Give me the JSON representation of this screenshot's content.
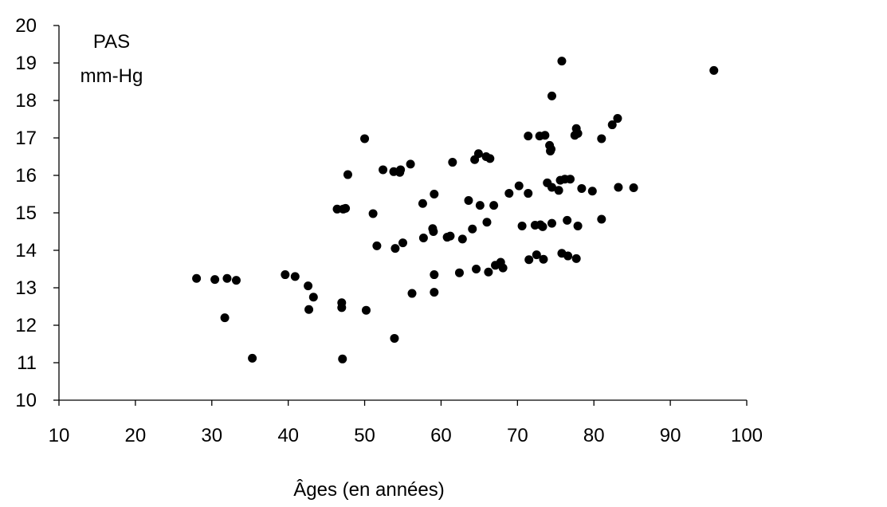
{
  "chart_data": {
    "type": "scatter",
    "title": "",
    "ylabel_lines": [
      "PAS",
      "mm-Hg"
    ],
    "xlabel": "Âges (en années)",
    "xlim": [
      10,
      100
    ],
    "ylim": [
      10,
      20
    ],
    "x_ticks": [
      "10",
      "20",
      "30",
      "40",
      "50",
      "60",
      "70",
      "80",
      "90",
      "100"
    ],
    "y_ticks": [
      "10",
      "11",
      "12",
      "13",
      "14",
      "15",
      "16",
      "17",
      "18",
      "19",
      "20"
    ],
    "grid": false,
    "legend": "none",
    "point_color": "#000000",
    "points": [
      [
        28.0,
        13.25
      ],
      [
        30.4,
        13.22
      ],
      [
        31.7,
        12.2
      ],
      [
        32.0,
        13.25
      ],
      [
        33.2,
        13.2
      ],
      [
        35.3,
        11.12
      ],
      [
        39.6,
        13.35
      ],
      [
        40.9,
        13.3
      ],
      [
        42.6,
        13.05
      ],
      [
        42.7,
        12.42
      ],
      [
        43.3,
        12.75
      ],
      [
        46.4,
        15.1
      ],
      [
        47.0,
        12.6
      ],
      [
        47.0,
        12.47
      ],
      [
        47.1,
        11.1
      ],
      [
        47.2,
        15.1
      ],
      [
        47.5,
        15.12
      ],
      [
        47.8,
        16.02
      ],
      [
        50.0,
        16.98
      ],
      [
        50.2,
        12.4
      ],
      [
        51.1,
        14.98
      ],
      [
        51.6,
        14.12
      ],
      [
        52.4,
        16.15
      ],
      [
        53.8,
        16.1
      ],
      [
        53.9,
        11.65
      ],
      [
        54.0,
        14.05
      ],
      [
        54.6,
        16.08
      ],
      [
        54.7,
        16.15
      ],
      [
        55.0,
        14.2
      ],
      [
        56.0,
        16.3
      ],
      [
        56.2,
        12.85
      ],
      [
        57.6,
        15.25
      ],
      [
        57.7,
        14.33
      ],
      [
        58.9,
        14.58
      ],
      [
        59.0,
        14.5
      ],
      [
        59.1,
        15.5
      ],
      [
        59.1,
        13.35
      ],
      [
        59.1,
        12.88
      ],
      [
        60.8,
        14.35
      ],
      [
        61.2,
        14.38
      ],
      [
        61.5,
        16.35
      ],
      [
        62.4,
        13.4
      ],
      [
        62.8,
        14.3
      ],
      [
        63.6,
        15.33
      ],
      [
        64.1,
        14.57
      ],
      [
        64.4,
        16.42
      ],
      [
        64.6,
        13.5
      ],
      [
        64.9,
        16.58
      ],
      [
        65.1,
        15.2
      ],
      [
        65.9,
        16.5
      ],
      [
        66.0,
        14.75
      ],
      [
        66.2,
        13.42
      ],
      [
        66.4,
        16.45
      ],
      [
        66.9,
        15.2
      ],
      [
        67.1,
        13.6
      ],
      [
        67.8,
        13.68
      ],
      [
        68.1,
        13.53
      ],
      [
        68.9,
        15.52
      ],
      [
        70.2,
        15.72
      ],
      [
        70.6,
        14.65
      ],
      [
        71.4,
        17.05
      ],
      [
        71.4,
        15.52
      ],
      [
        71.5,
        13.75
      ],
      [
        72.3,
        14.67
      ],
      [
        72.5,
        13.88
      ],
      [
        72.9,
        17.05
      ],
      [
        73.0,
        14.68
      ],
      [
        73.3,
        14.63
      ],
      [
        73.4,
        13.76
      ],
      [
        73.6,
        17.07
      ],
      [
        73.9,
        15.8
      ],
      [
        74.2,
        16.8
      ],
      [
        74.3,
        16.65
      ],
      [
        74.4,
        16.7
      ],
      [
        74.5,
        15.68
      ],
      [
        74.5,
        14.72
      ],
      [
        74.5,
        18.12
      ],
      [
        75.4,
        15.6
      ],
      [
        75.6,
        15.87
      ],
      [
        75.8,
        13.92
      ],
      [
        75.8,
        19.05
      ],
      [
        76.2,
        15.9
      ],
      [
        76.5,
        14.8
      ],
      [
        76.6,
        13.85
      ],
      [
        76.9,
        15.9
      ],
      [
        77.5,
        17.07
      ],
      [
        77.7,
        17.25
      ],
      [
        77.7,
        13.78
      ],
      [
        77.9,
        17.12
      ],
      [
        77.9,
        14.65
      ],
      [
        78.4,
        15.65
      ],
      [
        79.8,
        15.58
      ],
      [
        81.0,
        16.98
      ],
      [
        81.0,
        14.83
      ],
      [
        82.4,
        17.35
      ],
      [
        83.1,
        17.52
      ],
      [
        83.2,
        15.68
      ],
      [
        85.2,
        15.67
      ],
      [
        95.7,
        18.8
      ]
    ]
  }
}
